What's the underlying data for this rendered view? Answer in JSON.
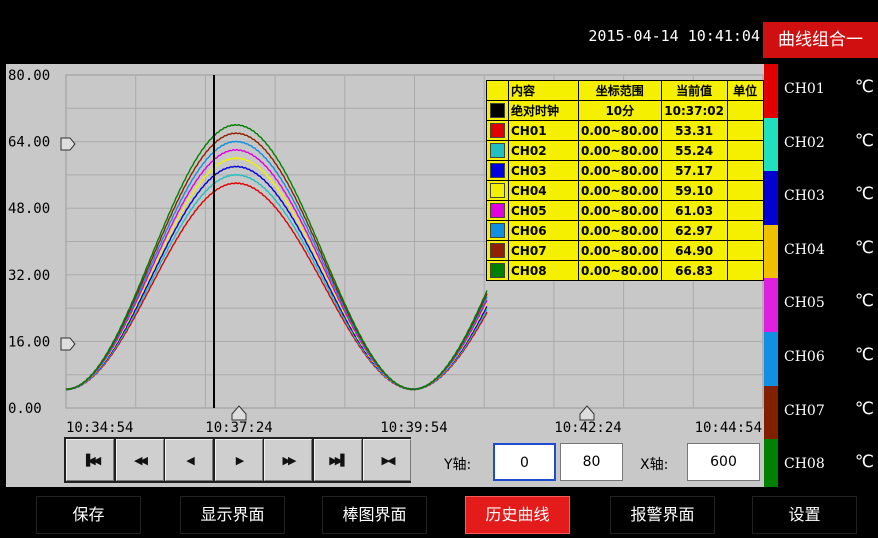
{
  "header": {
    "datetime": "2015-04-14 10:41:04",
    "group_button": "曲线组合一"
  },
  "chart_data": {
    "type": "line",
    "ylim": [
      0,
      80
    ],
    "y_ticks": [
      "80.00",
      "64.00",
      "48.00",
      "32.00",
      "16.00",
      "0.00"
    ],
    "x_ticks": [
      "10:34:54",
      "10:37:24",
      "10:39:54",
      "10:42:24",
      "10:44:54"
    ],
    "cursor_time": "10:37:02",
    "series_colors": [
      "#e00000",
      "#20c0c0",
      "#0000e0",
      "#f0f000",
      "#e000e0",
      "#1090e0",
      "#902000",
      "#008000"
    ],
    "curve_peaks": [
      54,
      56,
      58,
      60,
      62,
      64,
      66,
      68
    ],
    "curve_min": 4.5
  },
  "legend": {
    "headers": [
      "内容",
      "坐标范围",
      "当前值",
      "单位"
    ],
    "rows": [
      {
        "color": "#000000",
        "name": "绝对时钟",
        "range": "10分",
        "value": "10:37:02",
        "unit": ""
      },
      {
        "color": "#e00000",
        "name": "CH01",
        "range": "0.00~80.00",
        "value": "53.31",
        "unit": ""
      },
      {
        "color": "#20c0c0",
        "name": "CH02",
        "range": "0.00~80.00",
        "value": "55.24",
        "unit": ""
      },
      {
        "color": "#0000e0",
        "name": "CH03",
        "range": "0.00~80.00",
        "value": "57.17",
        "unit": ""
      },
      {
        "color": "#f0f000",
        "name": "CH04",
        "range": "0.00~80.00",
        "value": "59.10",
        "unit": ""
      },
      {
        "color": "#e000e0",
        "name": "CH05",
        "range": "0.00~80.00",
        "value": "61.03",
        "unit": ""
      },
      {
        "color": "#1090e0",
        "name": "CH06",
        "range": "0.00~80.00",
        "value": "62.97",
        "unit": ""
      },
      {
        "color": "#902000",
        "name": "CH07",
        "range": "0.00~80.00",
        "value": "64.90",
        "unit": ""
      },
      {
        "color": "#008000",
        "name": "CH08",
        "range": "0.00~80.00",
        "value": "66.83",
        "unit": ""
      }
    ]
  },
  "controls": {
    "buttons": [
      {
        "name": "first-frame-icon",
        "glyph": "▐◀◀"
      },
      {
        "name": "fast-back-icon",
        "glyph": "◀◀"
      },
      {
        "name": "step-back-icon",
        "glyph": "◀"
      },
      {
        "name": "play-icon",
        "glyph": "▶"
      },
      {
        "name": "fast-forward-icon",
        "glyph": "▶▶"
      },
      {
        "name": "last-frame-icon",
        "glyph": "▶▶▌"
      },
      {
        "name": "fit-icon",
        "glyph": "▶◀"
      }
    ],
    "y_label": "Y轴:",
    "y_min": "0",
    "y_max": "80",
    "x_label": "X轴:",
    "x_value": "600"
  },
  "sidebar": {
    "channels": [
      {
        "name": "CH01",
        "color": "#e00000",
        "unit": "℃"
      },
      {
        "name": "CH02",
        "color": "#20e0c0",
        "unit": "℃"
      },
      {
        "name": "CH03",
        "color": "#0000d0",
        "unit": "℃"
      },
      {
        "name": "CH04",
        "color": "#f0c000",
        "unit": "℃"
      },
      {
        "name": "CH05",
        "color": "#e020e0",
        "unit": "℃"
      },
      {
        "name": "CH06",
        "color": "#1090e0",
        "unit": "℃"
      },
      {
        "name": "CH07",
        "color": "#802000",
        "unit": "℃"
      },
      {
        "name": "CH08",
        "color": "#008000",
        "unit": "℃"
      }
    ]
  },
  "nav": {
    "items": [
      "保存",
      "显示界面",
      "棒图界面",
      "历史曲线",
      "报警界面",
      "设置"
    ],
    "active_index": 3
  }
}
